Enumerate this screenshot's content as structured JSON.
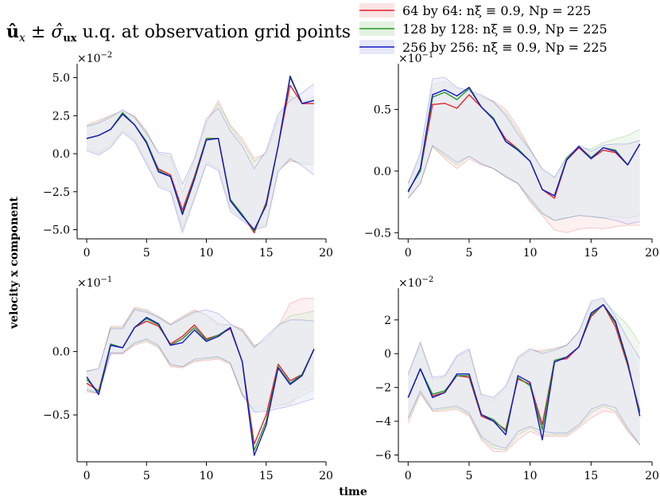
{
  "figure": {
    "title": "û_x ± σ̂_ux u.q. at observation grid points",
    "title_parts": {
      "main": "û",
      "sub": "x",
      "pm": " ± ",
      "sigma": "σ̂",
      "sigma_sub": "ux",
      "rest": " u.q. at observation grid points"
    },
    "xlabel": "time",
    "ylabel": "velocity x component"
  },
  "legend": [
    {
      "label": "64 by 64: nξ ≡ 0.9, Np = 225",
      "color": "#e8222a",
      "fill": "#fbe4e4"
    },
    {
      "label": "128 by 128: nξ ≡ 0.9, Np = 225",
      "color": "#279927",
      "fill": "#e3f2e0"
    },
    {
      "label": "256 by 256: nξ ≡ 0.9, Np = 225",
      "color": "#1515c8",
      "fill": "#e6e8f8"
    }
  ],
  "chart_data": [
    {
      "type": "line",
      "multiplier": "×10−2",
      "x": [
        0,
        1,
        2,
        3,
        4,
        5,
        6,
        7,
        8,
        9,
        10,
        11,
        12,
        13,
        14,
        15,
        16,
        17,
        18,
        19
      ],
      "xticks": [
        0,
        5,
        10,
        15,
        20
      ],
      "xlim": [
        -0.8,
        20
      ],
      "yticks": [
        -5.0,
        -2.5,
        0.0,
        2.5,
        5.0
      ],
      "ytick_labels": [
        "−5.0",
        "−2.5",
        "0.0",
        "2.5",
        "5.0"
      ],
      "ylim": [
        -5.6,
        5.5
      ],
      "series": [
        {
          "name": "64 by 64",
          "mean": [
            1.0,
            1.2,
            1.6,
            2.6,
            1.9,
            0.7,
            -1.0,
            -1.4,
            -3.7,
            -1.5,
            1.0,
            1.0,
            -3.0,
            -4.0,
            -5.2,
            -3.2,
            0.5,
            4.5,
            3.3,
            3.3
          ],
          "upper": [
            1.9,
            2.2,
            2.5,
            2.8,
            2.5,
            1.5,
            0.0,
            -0.3,
            -2.6,
            -0.5,
            2.1,
            3.5,
            1.9,
            1.0,
            -0.3,
            0.0,
            2.2,
            3.6,
            3.3,
            3.3
          ],
          "lower": [
            0.4,
            0.1,
            0.6,
            1.6,
            1.0,
            -0.5,
            -2.0,
            -2.3,
            -4.9,
            -2.8,
            -0.5,
            -0.9,
            -3.5,
            -4.2,
            -4.8,
            -4.6,
            -1.0,
            -0.5,
            -0.6,
            -0.6
          ]
        },
        {
          "name": "128 by 128",
          "mean": [
            1.0,
            1.2,
            1.6,
            2.7,
            1.9,
            0.8,
            -1.1,
            -1.5,
            -3.9,
            -1.6,
            1.0,
            1.0,
            -3.0,
            -4.0,
            -5.1,
            -3.3,
            0.5,
            5.0,
            3.3,
            3.5
          ],
          "upper": [
            1.8,
            2.1,
            2.5,
            2.8,
            2.4,
            1.4,
            0.0,
            -0.2,
            -2.5,
            -0.4,
            2.0,
            3.3,
            1.8,
            0.8,
            -0.5,
            0.0,
            2.3,
            3.8,
            3.4,
            3.8
          ],
          "lower": [
            0.3,
            0.0,
            0.5,
            1.5,
            0.9,
            -0.6,
            -2.1,
            -2.4,
            -5.0,
            -2.9,
            -0.6,
            -1.0,
            -3.6,
            -4.3,
            -4.9,
            -4.7,
            -1.1,
            -0.4,
            -0.7,
            -0.7
          ]
        },
        {
          "name": "256 by 256",
          "mean": [
            1.0,
            1.2,
            1.6,
            2.6,
            1.9,
            0.7,
            -1.2,
            -1.5,
            -4.0,
            -1.7,
            0.9,
            1.0,
            -3.1,
            -4.1,
            -5.0,
            -3.4,
            0.5,
            5.1,
            3.3,
            3.5
          ],
          "upper": [
            1.8,
            2.0,
            2.4,
            2.9,
            2.4,
            1.3,
            0.1,
            0.0,
            -2.0,
            -0.3,
            2.3,
            3.0,
            1.5,
            0.5,
            -1.0,
            0.2,
            2.6,
            3.5,
            4.0,
            4.6
          ],
          "lower": [
            0.2,
            -0.1,
            0.4,
            1.4,
            0.8,
            -0.7,
            -2.2,
            -2.5,
            -5.2,
            -3.0,
            -0.7,
            -1.1,
            -3.8,
            -4.4,
            -5.0,
            -4.8,
            -1.2,
            -0.3,
            -0.8,
            -1.4
          ]
        }
      ]
    },
    {
      "type": "line",
      "multiplier": "×10−1",
      "x": [
        0,
        1,
        2,
        3,
        4,
        5,
        6,
        7,
        8,
        9,
        10,
        11,
        12,
        13,
        14,
        15,
        16,
        17,
        18,
        19
      ],
      "xticks": [
        0,
        5,
        10,
        15,
        20
      ],
      "xlim": [
        -0.8,
        20
      ],
      "yticks": [
        -0.5,
        0.0,
        0.5
      ],
      "ytick_labels": [
        "−0.5",
        "0.0",
        "0.5"
      ],
      "ylim": [
        -0.55,
        0.82
      ],
      "series": [
        {
          "name": "64 by 64",
          "mean": [
            -0.16,
            0.0,
            0.54,
            0.55,
            0.51,
            0.62,
            0.52,
            0.42,
            0.26,
            0.18,
            0.08,
            -0.15,
            -0.22,
            0.09,
            0.19,
            0.1,
            0.17,
            0.15,
            0.05,
            0.22
          ],
          "upper": [
            -0.1,
            0.1,
            0.66,
            0.71,
            0.65,
            0.62,
            0.6,
            0.57,
            0.5,
            0.36,
            0.18,
            0.0,
            -0.09,
            0.1,
            0.2,
            0.14,
            0.19,
            0.2,
            0.22,
            0.24
          ],
          "lower": [
            -0.22,
            -0.1,
            0.2,
            0.1,
            0.02,
            0.1,
            0.05,
            0.02,
            -0.05,
            -0.1,
            -0.25,
            -0.36,
            -0.48,
            -0.5,
            -0.47,
            -0.46,
            -0.47,
            -0.45,
            -0.44,
            -0.44
          ]
        },
        {
          "name": "128 by 128",
          "mean": [
            -0.16,
            0.0,
            0.6,
            0.64,
            0.58,
            0.67,
            0.52,
            0.43,
            0.24,
            0.18,
            0.08,
            -0.15,
            -0.2,
            0.1,
            0.2,
            0.11,
            0.19,
            0.17,
            0.05,
            0.22
          ],
          "upper": [
            -0.1,
            0.12,
            0.7,
            0.73,
            0.67,
            0.64,
            0.61,
            0.56,
            0.47,
            0.33,
            0.18,
            0.01,
            -0.06,
            0.12,
            0.19,
            0.18,
            0.23,
            0.26,
            0.29,
            0.34
          ],
          "lower": [
            -0.22,
            -0.1,
            0.2,
            0.12,
            0.05,
            0.12,
            0.06,
            0.02,
            -0.05,
            -0.1,
            -0.24,
            -0.35,
            -0.4,
            -0.38,
            -0.36,
            -0.37,
            -0.38,
            -0.37,
            -0.38,
            -0.36
          ]
        },
        {
          "name": "256 by 256",
          "mean": [
            -0.17,
            0.02,
            0.62,
            0.66,
            0.61,
            0.68,
            0.52,
            0.42,
            0.24,
            0.17,
            0.08,
            -0.15,
            -0.2,
            0.09,
            0.2,
            0.1,
            0.19,
            0.16,
            0.05,
            0.22
          ],
          "upper": [
            -0.1,
            0.15,
            0.75,
            0.76,
            0.68,
            0.65,
            0.62,
            0.56,
            0.45,
            0.3,
            0.17,
            0.02,
            -0.05,
            0.11,
            0.21,
            0.16,
            0.21,
            0.22,
            0.22,
            0.25
          ],
          "lower": [
            -0.22,
            -0.1,
            0.21,
            0.14,
            0.07,
            0.12,
            0.06,
            0.02,
            -0.04,
            -0.1,
            -0.22,
            -0.34,
            -0.4,
            -0.38,
            -0.36,
            -0.37,
            -0.38,
            -0.4,
            -0.43,
            -0.41
          ]
        }
      ]
    },
    {
      "type": "line",
      "multiplier": "×10−1",
      "x": [
        0,
        1,
        2,
        3,
        4,
        5,
        6,
        7,
        8,
        9,
        10,
        11,
        12,
        13,
        14,
        15,
        16,
        17,
        18,
        19
      ],
      "xticks": [
        0,
        5,
        10,
        15,
        20
      ],
      "xlim": [
        -0.8,
        20
      ],
      "yticks": [
        -0.5,
        0.0
      ],
      "ytick_labels": [
        "−0.5",
        "0.0"
      ],
      "ylim": [
        -0.87,
        0.45
      ],
      "series": [
        {
          "name": "64 by 64",
          "mean": [
            -0.25,
            -0.31,
            0.05,
            0.03,
            0.19,
            0.24,
            0.2,
            0.06,
            0.12,
            0.21,
            0.1,
            0.13,
            0.18,
            -0.08,
            -0.73,
            -0.5,
            -0.1,
            -0.23,
            -0.18,
            0.02
          ],
          "upper": [
            -0.15,
            -0.15,
            0.2,
            0.2,
            0.35,
            0.33,
            0.28,
            0.22,
            0.28,
            0.33,
            0.29,
            0.22,
            0.21,
            0.18,
            0.05,
            0.08,
            0.2,
            0.38,
            0.42,
            0.42
          ],
          "lower": [
            -0.32,
            -0.33,
            -0.02,
            -0.02,
            0.05,
            0.08,
            0.03,
            -0.12,
            -0.13,
            -0.08,
            -0.07,
            -0.06,
            -0.1,
            -0.35,
            -0.45,
            -0.43,
            -0.42,
            -0.42,
            -0.3,
            -0.28
          ]
        },
        {
          "name": "128 by 128",
          "mean": [
            -0.22,
            -0.32,
            0.06,
            0.03,
            0.19,
            0.26,
            0.21,
            0.05,
            0.1,
            0.19,
            0.09,
            0.13,
            0.19,
            -0.08,
            -0.78,
            -0.55,
            -0.12,
            -0.25,
            -0.18,
            0.02
          ],
          "upper": [
            -0.15,
            -0.14,
            0.19,
            0.19,
            0.34,
            0.32,
            0.27,
            0.21,
            0.27,
            0.32,
            0.29,
            0.21,
            0.21,
            0.17,
            0.04,
            0.1,
            0.2,
            0.28,
            0.3,
            0.32
          ],
          "lower": [
            -0.31,
            -0.33,
            -0.01,
            -0.01,
            0.06,
            0.09,
            0.04,
            -0.11,
            -0.12,
            -0.07,
            -0.06,
            -0.05,
            -0.09,
            -0.34,
            -0.47,
            -0.45,
            -0.43,
            -0.4,
            -0.35,
            -0.3
          ]
        },
        {
          "name": "256 by 256",
          "mean": [
            -0.2,
            -0.34,
            0.05,
            0.03,
            0.19,
            0.27,
            0.22,
            0.05,
            0.07,
            0.17,
            0.08,
            0.12,
            0.19,
            -0.08,
            -0.82,
            -0.58,
            -0.13,
            -0.26,
            -0.19,
            0.02
          ],
          "upper": [
            -0.16,
            -0.13,
            0.18,
            0.18,
            0.33,
            0.31,
            0.27,
            0.21,
            0.26,
            0.31,
            0.33,
            0.3,
            0.22,
            0.16,
            0.03,
            0.12,
            0.21,
            0.25,
            0.25,
            0.24
          ],
          "lower": [
            -0.3,
            -0.33,
            -0.01,
            -0.01,
            0.07,
            0.1,
            0.05,
            -0.1,
            -0.12,
            -0.06,
            -0.05,
            -0.04,
            -0.09,
            -0.33,
            -0.48,
            -0.47,
            -0.45,
            -0.43,
            -0.4,
            -0.37
          ]
        }
      ]
    },
    {
      "type": "line",
      "multiplier": "×10−2",
      "x": [
        0,
        1,
        2,
        3,
        4,
        5,
        6,
        7,
        8,
        9,
        10,
        11,
        12,
        13,
        14,
        15,
        16,
        17,
        18,
        19
      ],
      "xticks": [
        0,
        5,
        10,
        15,
        20
      ],
      "xlim": [
        -0.8,
        20
      ],
      "yticks": [
        -6,
        -4,
        -2,
        0,
        2
      ],
      "ytick_labels": [
        "−6",
        "−4",
        "−2",
        "0",
        "2"
      ],
      "ylim": [
        -6.4,
        3.5
      ],
      "series": [
        {
          "name": "64 by 64",
          "mean": [
            -2.6,
            -0.9,
            -2.5,
            -2.3,
            -1.3,
            -1.4,
            -3.7,
            -4.0,
            -4.5,
            -1.5,
            -1.8,
            -4.2,
            -0.4,
            -0.3,
            0.4,
            2.2,
            2.9,
            1.6,
            -0.7,
            -3.4
          ],
          "upper": [
            -1.3,
            0.6,
            -1.6,
            -1.4,
            -0.2,
            0.2,
            -2.6,
            -2.8,
            -2.1,
            -0.3,
            0.2,
            0.2,
            0.3,
            0.5,
            1.3,
            2.9,
            3.1,
            2.0,
            0.8,
            -1.4
          ],
          "lower": [
            -4.1,
            -2.4,
            -3.4,
            -3.4,
            -3.3,
            -3.7,
            -5.1,
            -5.8,
            -5.8,
            -5.1,
            -4.6,
            -4.9,
            -4.9,
            -4.9,
            -4.4,
            -3.8,
            -3.4,
            -3.5,
            -4.6,
            -5.4
          ]
        },
        {
          "name": "128 by 128",
          "mean": [
            -2.6,
            -0.9,
            -2.4,
            -2.2,
            -1.3,
            -1.3,
            -3.6,
            -3.9,
            -4.6,
            -1.4,
            -1.9,
            -4.5,
            -0.4,
            -0.2,
            0.4,
            2.3,
            2.9,
            1.8,
            -0.6,
            -3.5
          ],
          "upper": [
            -1.3,
            0.6,
            -1.5,
            -1.4,
            -0.2,
            0.2,
            -2.5,
            -2.7,
            -2.0,
            -0.3,
            0.2,
            0.1,
            0.3,
            0.5,
            1.3,
            3.0,
            3.2,
            2.4,
            1.7,
            0.6
          ],
          "lower": [
            -3.9,
            -2.3,
            -3.4,
            -3.3,
            -3.2,
            -3.6,
            -5.0,
            -5.6,
            -5.7,
            -4.8,
            -4.4,
            -4.8,
            -4.8,
            -4.8,
            -4.3,
            -3.5,
            -3.1,
            -3.4,
            -4.5,
            -5.4
          ]
        },
        {
          "name": "256 by 256",
          "mean": [
            -2.6,
            -0.9,
            -2.6,
            -2.3,
            -1.2,
            -1.2,
            -3.6,
            -4.0,
            -4.8,
            -1.3,
            -1.7,
            -5.1,
            -0.5,
            -0.2,
            0.4,
            2.4,
            2.9,
            1.9,
            -0.5,
            -3.7
          ],
          "upper": [
            -1.2,
            0.7,
            -1.4,
            -1.3,
            -0.1,
            0.3,
            -2.4,
            -2.6,
            -1.9,
            -0.2,
            0.3,
            0.0,
            0.2,
            0.5,
            1.3,
            3.1,
            3.3,
            2.2,
            0.9,
            -0.3
          ],
          "lower": [
            -3.8,
            -2.2,
            -3.3,
            -3.2,
            -3.1,
            -3.5,
            -4.9,
            -5.4,
            -5.6,
            -4.6,
            -4.3,
            -4.6,
            -4.7,
            -4.7,
            -4.2,
            -3.3,
            -3.0,
            -3.2,
            -4.4,
            -5.4
          ]
        }
      ]
    }
  ]
}
